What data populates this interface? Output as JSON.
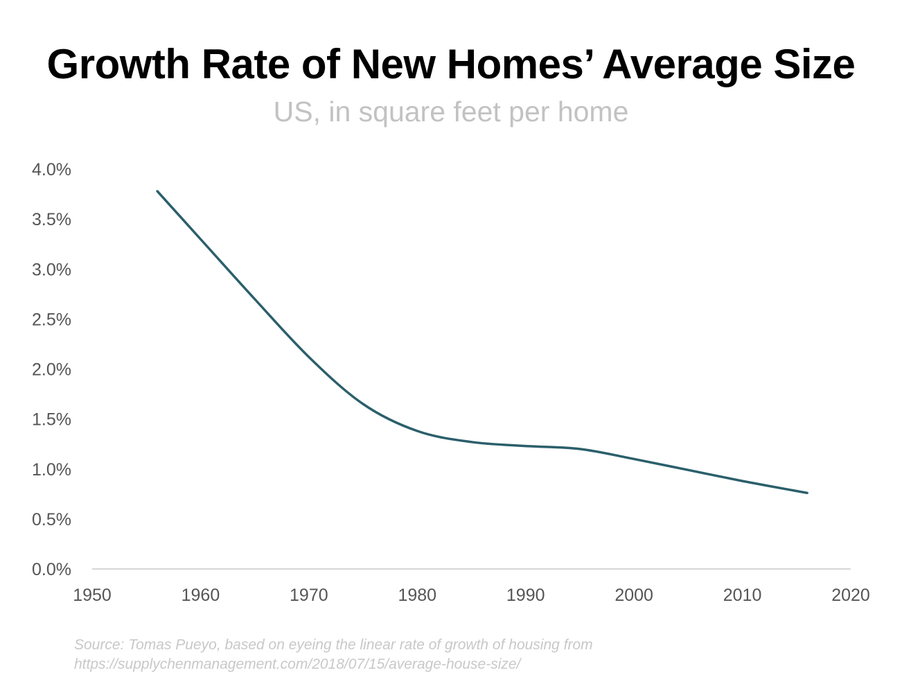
{
  "chart_data": {
    "type": "line",
    "title": "Growth Rate of New Homes’ Average Size",
    "subtitle": "US, in square feet per home",
    "xlabel": "",
    "ylabel": "",
    "xlim": [
      1950,
      2020
    ],
    "ylim": [
      0,
      4
    ],
    "x_ticks": [
      1950,
      1960,
      1970,
      1980,
      1990,
      2000,
      2010,
      2020
    ],
    "x_tick_labels": [
      "1950",
      "1960",
      "1970",
      "1980",
      "1990",
      "2000",
      "2010",
      "2020"
    ],
    "y_ticks": [
      0,
      0.5,
      1,
      1.5,
      2,
      2.5,
      3,
      3.5,
      4
    ],
    "y_tick_labels": [
      "0.0%",
      "0.5%",
      "1.0%",
      "1.5%",
      "2.0%",
      "2.5%",
      "3.0%",
      "3.5%",
      "4.0%"
    ],
    "grid": false,
    "legend": "none",
    "series": [
      {
        "color": "#2b5f6b",
        "x": [
          1956,
          1960,
          1965,
          1970,
          1975,
          1980,
          1985,
          1990,
          1995,
          2000,
          2005,
          2010,
          2016
        ],
        "y": [
          3.78,
          3.3,
          2.7,
          2.12,
          1.65,
          1.38,
          1.27,
          1.23,
          1.2,
          1.1,
          0.99,
          0.88,
          0.76
        ]
      }
    ],
    "source": [
      "Source: Tomas Pueyo, based on eyeing the linear rate of growth of housing from",
      "https://supplychenmanagement.com/2018/07/15/average-house-size/"
    ]
  }
}
